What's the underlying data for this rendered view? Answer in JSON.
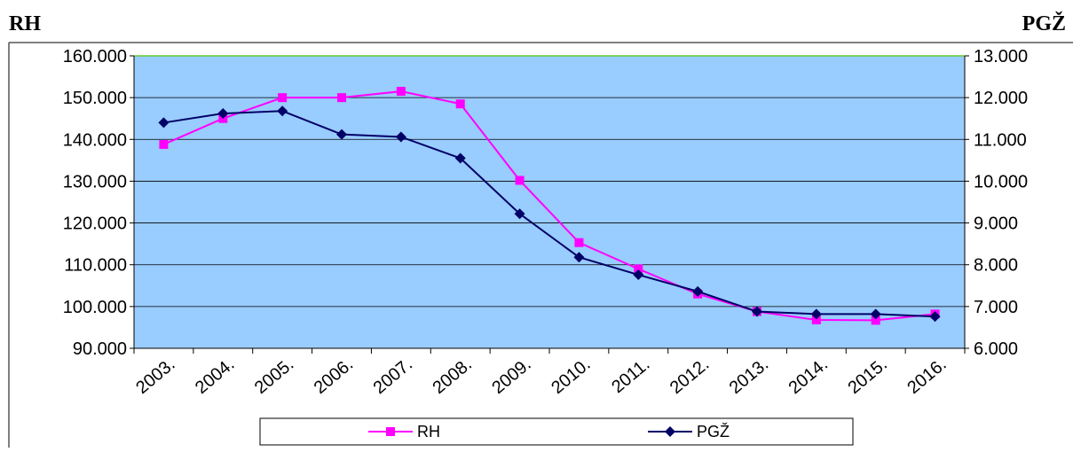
{
  "header": {
    "left_label": "RH",
    "right_label": "PGŽ"
  },
  "chart_data": {
    "type": "line",
    "categories": [
      "2003.",
      "2004.",
      "2005.",
      "2006.",
      "2007.",
      "2008.",
      "2009.",
      "2010.",
      "2011.",
      "2012.",
      "2013.",
      "2014.",
      "2015.",
      "2016."
    ],
    "left_axis": {
      "min": 90000,
      "max": 160000,
      "step": 10000,
      "tick_labels": [
        "90.000",
        "100.000",
        "110.000",
        "120.000",
        "130.000",
        "140.000",
        "150.000",
        "160.000"
      ]
    },
    "right_axis": {
      "min": 6000,
      "max": 13000,
      "step": 1000,
      "tick_labels": [
        "6.000",
        "7.000",
        "8.000",
        "9.000",
        "10.000",
        "11.000",
        "12.000",
        "13.000"
      ]
    },
    "series": [
      {
        "name": "RH",
        "axis": "left",
        "color": "#ff00ff",
        "marker": "square",
        "values": [
          138800,
          145000,
          150000,
          150000,
          151500,
          148500,
          130200,
          115300,
          109000,
          103000,
          98800,
          96800,
          96700,
          98200
        ]
      },
      {
        "name": "PGŽ",
        "axis": "right",
        "color": "#000066",
        "marker": "diamond",
        "values": [
          11400,
          11620,
          11680,
          11120,
          11060,
          10550,
          9220,
          8180,
          7760,
          7360,
          6880,
          6820,
          6820,
          6760
        ]
      }
    ],
    "grid": true,
    "legend_position": "bottom",
    "plot_background": "#99ccff"
  }
}
